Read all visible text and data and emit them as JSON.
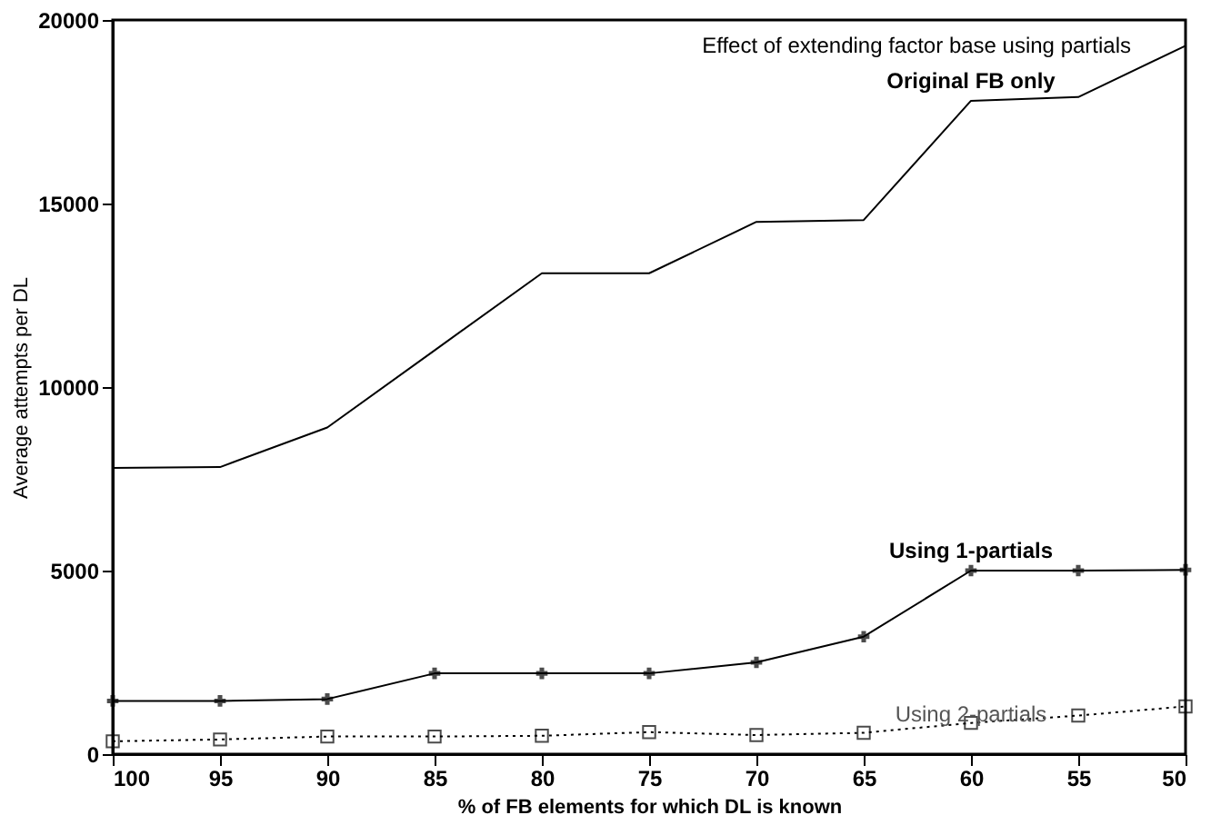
{
  "chart_data": {
    "type": "line",
    "xlabel": "% of FB elements for which DL is known",
    "ylabel": "Average attempts per DL",
    "x": [
      100,
      95,
      90,
      85,
      80,
      75,
      70,
      65,
      60,
      55,
      50
    ],
    "xlim": [
      100,
      50
    ],
    "xticks": [
      100,
      95,
      90,
      85,
      80,
      75,
      70,
      65,
      60,
      55,
      50
    ],
    "ylim": [
      0,
      20000
    ],
    "yticks": [
      0,
      5000,
      10000,
      15000,
      20000
    ],
    "grid": false,
    "annotations": [
      "Effect of extending factor base using partials"
    ],
    "series": [
      {
        "name": "Original FB only",
        "color": "#000000",
        "marker": "none",
        "line_style": "solid",
        "values": [
          7800,
          7820,
          8900,
          11000,
          13100,
          13100,
          14500,
          14550,
          17800,
          17900,
          19300
        ]
      },
      {
        "name": "Using 1-partials",
        "color": "#000000",
        "marker": "cross",
        "line_style": "solid",
        "values": [
          1450,
          1450,
          1500,
          2200,
          2200,
          2200,
          2500,
          3200,
          5000,
          5000,
          5020
        ]
      },
      {
        "name": "Using 2-partials",
        "color": "#000000",
        "marker": "square",
        "line_style": "dotted",
        "values": [
          350,
          400,
          480,
          480,
          500,
          600,
          520,
          580,
          850,
          1050,
          1300
        ]
      }
    ]
  }
}
